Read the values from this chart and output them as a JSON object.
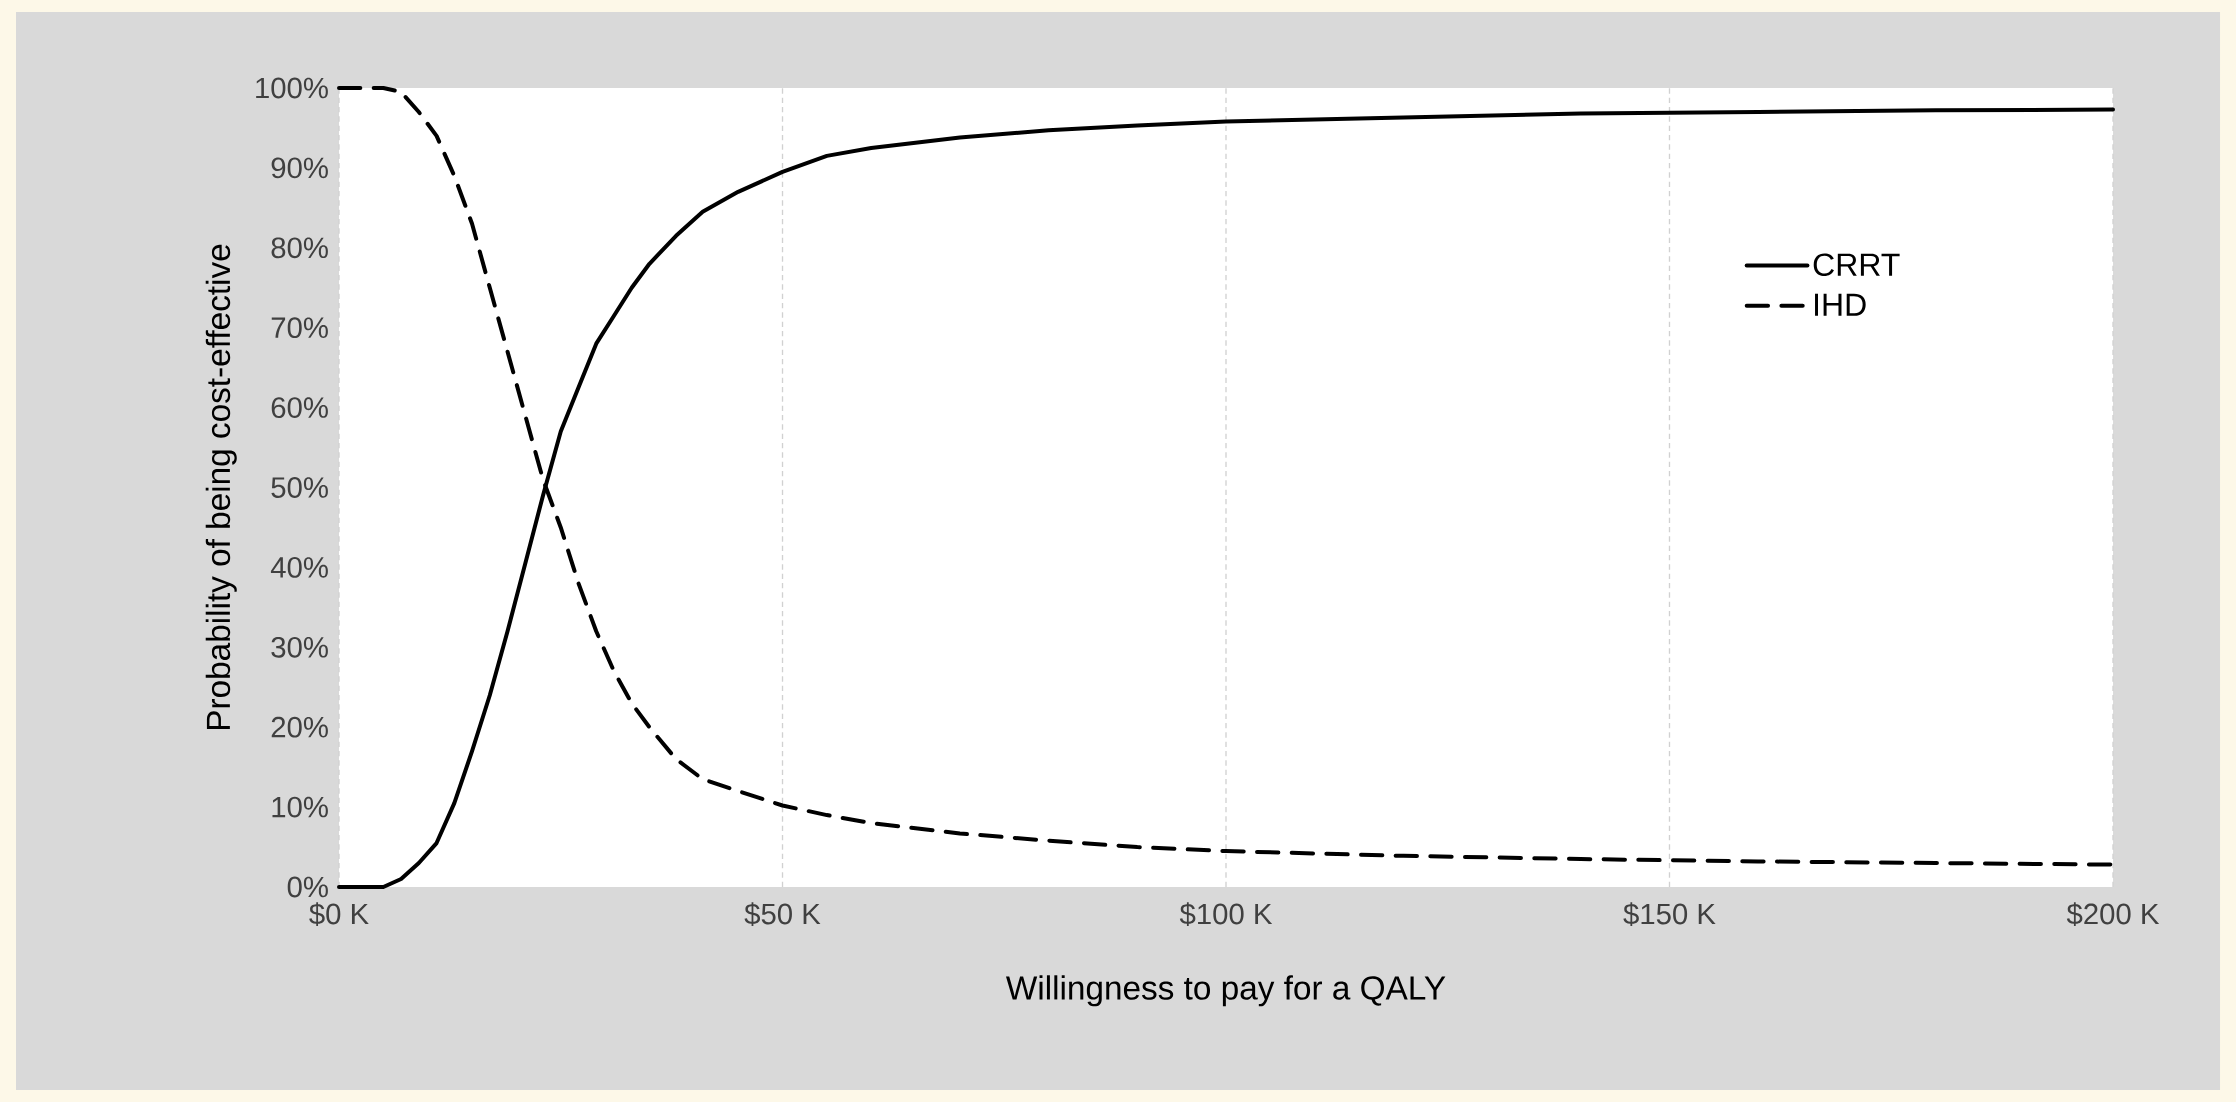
{
  "chart_data": {
    "type": "line",
    "xlabel": "Willingness to pay for a QALY",
    "ylabel": "Probability of being cost-effective",
    "x": [
      0,
      5,
      7,
      9,
      11,
      13,
      15,
      17,
      19,
      21,
      23,
      25,
      27,
      29,
      31,
      33,
      35,
      38,
      41,
      45,
      50,
      55,
      60,
      70,
      80,
      90,
      100,
      120,
      140,
      160,
      180,
      200
    ],
    "series": [
      {
        "name": "CRRT",
        "color": "#000000",
        "line_style": "solid",
        "values": [
          0,
          0,
          1,
          3,
          5.5,
          10.5,
          17,
          24,
          32,
          40.5,
          49,
          57,
          62.5,
          68,
          71.5,
          75,
          78,
          81.5,
          84.5,
          87,
          89.5,
          91.5,
          92.5,
          93.8,
          94.7,
          95.3,
          95.8,
          96.3,
          96.8,
          97,
          97.2,
          97.3
        ]
      },
      {
        "name": "IHD",
        "color": "#000000",
        "line_style": "dashed",
        "values": [
          100,
          100,
          99.5,
          97,
          94,
          89,
          83,
          75,
          67,
          59,
          51,
          45,
          38,
          32,
          27,
          23,
          20,
          16,
          13.5,
          12,
          10.2,
          9,
          8,
          6.7,
          5.8,
          5,
          4.5,
          3.9,
          3.5,
          3.2,
          3,
          2.8
        ]
      }
    ],
    "xlim": [
      0,
      200
    ],
    "xticks": [
      {
        "value": 0,
        "label": "$0 K"
      },
      {
        "value": 50,
        "label": "$50 K"
      },
      {
        "value": 100,
        "label": "$100 K"
      },
      {
        "value": 150,
        "label": "$150 K"
      },
      {
        "value": 200,
        "label": "$200 K"
      }
    ],
    "ylim": [
      0,
      100
    ],
    "yticks": [
      {
        "value": 0,
        "label": "0%"
      },
      {
        "value": 10,
        "label": "10%"
      },
      {
        "value": 20,
        "label": "20%"
      },
      {
        "value": 30,
        "label": "30%"
      },
      {
        "value": 40,
        "label": "40%"
      },
      {
        "value": 50,
        "label": "50%"
      },
      {
        "value": 60,
        "label": "60%"
      },
      {
        "value": 70,
        "label": "70%"
      },
      {
        "value": 80,
        "label": "80%"
      },
      {
        "value": 90,
        "label": "90%"
      },
      {
        "value": 100,
        "label": "100%"
      }
    ],
    "grid": "x",
    "legend": "top right",
    "marker": "none"
  }
}
